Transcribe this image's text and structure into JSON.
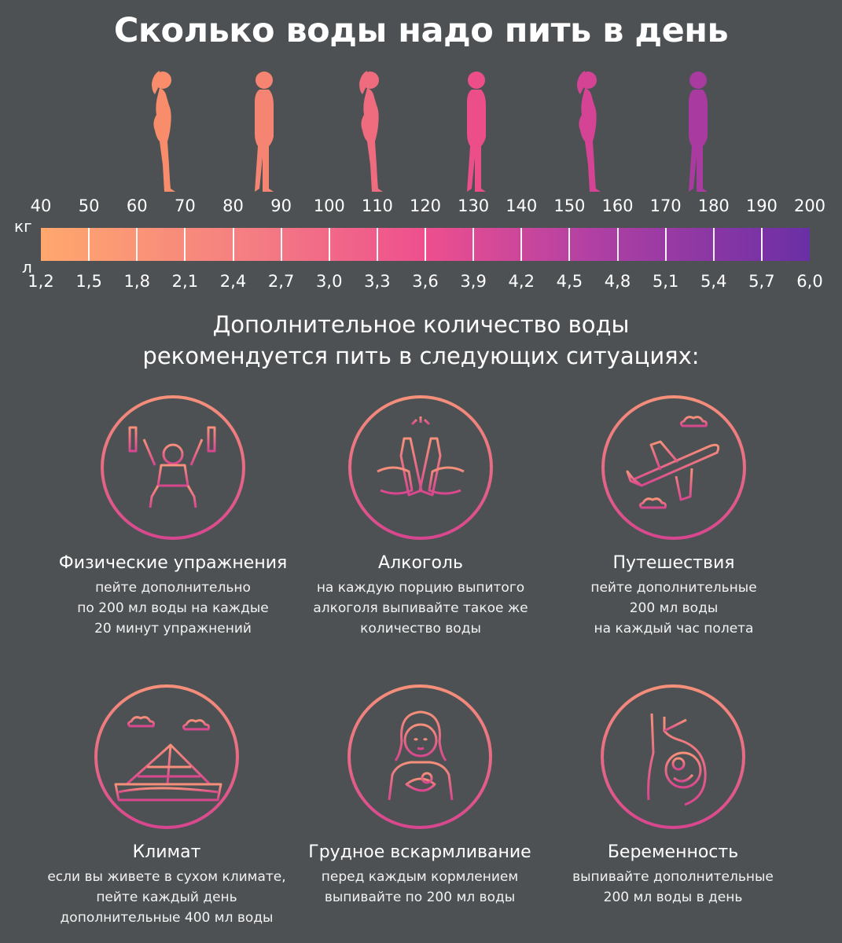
{
  "title": "Сколько воды надо пить в день",
  "scale": {
    "kg_unit": "кг",
    "l_unit": "л",
    "kg_ticks": [
      "40",
      "50",
      "60",
      "70",
      "80",
      "90",
      "100",
      "110",
      "120",
      "130",
      "140",
      "150",
      "160",
      "170",
      "180",
      "190",
      "200"
    ],
    "l_ticks": [
      "1,2",
      "1,5",
      "1,8",
      "2,1",
      "2,4",
      "2,7",
      "3,0",
      "3,3",
      "3,6",
      "3,9",
      "4,2",
      "4,5",
      "4,8",
      "5,1",
      "5,4",
      "5,7",
      "6,0"
    ],
    "gradient_colors": [
      "#ffa86d",
      "#f47c83",
      "#ee4f8e",
      "#b040a4",
      "#6a2fa5"
    ]
  },
  "figures": [
    {
      "icon": "woman-silhouette-icon",
      "color": "#f98d6b"
    },
    {
      "icon": "man-silhouette-icon",
      "color": "#f68472"
    },
    {
      "icon": "woman-silhouette-icon",
      "color": "#ef6b7e"
    },
    {
      "icon": "man-silhouette-icon",
      "color": "#ec4e8a"
    },
    {
      "icon": "woman-silhouette-icon",
      "color": "#d54395"
    },
    {
      "icon": "man-silhouette-icon",
      "color": "#a83aa0"
    }
  ],
  "subtitle_line1": "Дополнительное количество воды",
  "subtitle_line2": "рекомендуется пить в следующих ситуациях:",
  "cards": [
    {
      "icon": "weightlifter-icon",
      "label": "Физические упражнения",
      "desc": [
        "пейте дополнительно",
        "по 200 мл воды на каждые",
        "20 минут упражнений"
      ]
    },
    {
      "icon": "toasting-bottles-icon",
      "label": "Алкоголь",
      "desc": [
        "на каждую порцию выпитого",
        "алкоголя выпивайте такое же",
        "количество воды"
      ]
    },
    {
      "icon": "airplane-icon",
      "label": "Путешествия",
      "desc": [
        "пейте дополнительные",
        "200 мл воды",
        "на каждый час полета"
      ]
    },
    {
      "icon": "pyramid-desert-icon",
      "label": "Климат",
      "desc": [
        "если вы живете в сухом климате,",
        "пейте каждый день",
        "дополнительные 400 мл воды"
      ]
    },
    {
      "icon": "breastfeeding-mother-icon",
      "label": "Грудное вскармливание",
      "desc": [
        "перед каждым кормлением",
        "выпивайте по 200 мл воды"
      ]
    },
    {
      "icon": "pregnant-belly-icon",
      "label": "Беременность",
      "desc": [
        "выпивайте дополнительные",
        "200 мл воды в день"
      ]
    }
  ],
  "accent_gradient": [
    "#f6907a",
    "#d8468f"
  ]
}
